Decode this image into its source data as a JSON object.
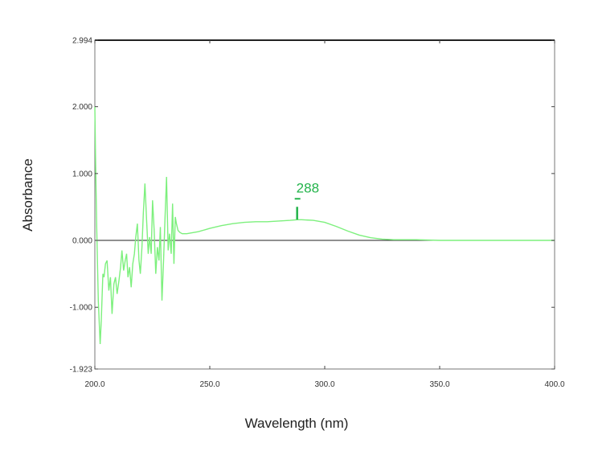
{
  "colors": {
    "spectrum": "#7df07d",
    "annotation": "#22b34a",
    "axis": "#222222",
    "background": "#ffffff"
  },
  "chart_data": {
    "type": "line",
    "title": "",
    "xlabel": "Wavelength (nm)",
    "ylabel": "Absorbance",
    "xlim": [
      200.0,
      400.0
    ],
    "ylim": [
      -1.923,
      2.994
    ],
    "grid": false,
    "x_ticks": [
      {
        "value": 200.0,
        "label": "200.0"
      },
      {
        "value": 250.0,
        "label": "250.0"
      },
      {
        "value": 300.0,
        "label": "300.0"
      },
      {
        "value": 350.0,
        "label": "350.0"
      },
      {
        "value": 400.0,
        "label": "400.0"
      }
    ],
    "y_ticks": [
      {
        "value": 2.994,
        "label": "2.994"
      },
      {
        "value": 2.0,
        "label": "2.000"
      },
      {
        "value": 1.0,
        "label": "1.000"
      },
      {
        "value": 0.0,
        "label": "0.000"
      },
      {
        "value": -1.0,
        "label": "-1.000"
      },
      {
        "value": -1.923,
        "label": "-1.923"
      }
    ],
    "zero_line": 0.0,
    "series": [
      {
        "x": [
          200.0,
          200.3,
          200.8,
          201.5,
          202.3,
          202.8,
          203.5,
          204.0,
          204.6,
          205.3,
          206.1,
          206.8,
          207.5,
          208.3,
          209.0,
          209.7,
          210.5,
          211.2,
          211.8,
          212.5,
          213.2,
          213.8,
          214.4,
          215.1,
          215.8,
          216.5,
          217.2,
          217.8,
          218.5,
          219.2,
          219.8,
          220.5,
          221.1,
          221.8,
          222.5,
          223.2,
          223.8,
          224.5,
          225.1,
          225.8,
          226.5,
          227.2,
          227.9,
          228.5,
          229.2,
          229.9,
          230.5,
          231.2,
          231.9,
          232.5,
          233.2,
          233.8,
          234.4,
          235.0,
          235.5,
          236.2,
          237.0,
          238.0,
          240.0,
          245.0,
          250.0,
          255.0,
          260.0,
          265.0,
          270.0,
          275.0,
          280.0,
          285.0,
          288.0,
          290.0,
          295.0,
          300.0,
          305.0,
          310.0,
          315.0,
          320.0,
          325.0,
          330.0,
          340.0,
          350.0,
          360.0,
          370.0,
          380.0,
          390.0,
          400.0
        ],
        "y": [
          2.0,
          1.2,
          0.2,
          -0.9,
          -1.55,
          -1.2,
          -0.5,
          -0.55,
          -0.35,
          -0.3,
          -0.75,
          -0.55,
          -1.1,
          -0.65,
          -0.55,
          -0.8,
          -0.6,
          -0.4,
          -0.15,
          -0.45,
          -0.3,
          -0.2,
          -0.55,
          -0.4,
          -0.7,
          -0.35,
          -0.2,
          0.05,
          0.25,
          -0.3,
          -0.5,
          -0.1,
          0.4,
          0.85,
          0.3,
          -0.2,
          0.05,
          -0.2,
          0.6,
          0.15,
          -0.5,
          -0.1,
          -0.3,
          0.2,
          -0.9,
          -0.3,
          0.3,
          0.95,
          -0.15,
          0.1,
          -0.2,
          0.55,
          -0.35,
          0.35,
          0.25,
          0.15,
          0.12,
          0.1,
          0.1,
          0.13,
          0.18,
          0.22,
          0.25,
          0.27,
          0.28,
          0.28,
          0.29,
          0.3,
          0.31,
          0.31,
          0.3,
          0.27,
          0.21,
          0.14,
          0.08,
          0.04,
          0.02,
          0.01,
          0.01,
          0.0,
          0.0,
          0.0,
          0.0,
          0.0,
          0.0
        ]
      }
    ],
    "annotations": [
      {
        "text": "288",
        "x": 288.0,
        "y": 0.31
      }
    ]
  }
}
